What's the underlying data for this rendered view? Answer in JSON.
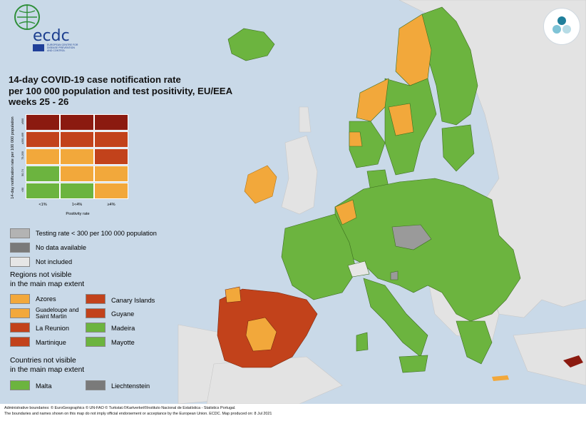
{
  "logo": {
    "text": "ecdc",
    "subtitle": "EUROPEAN CENTRE FOR DISEASE PREVENTION AND CONTROL"
  },
  "title": {
    "lines": [
      "14-day COVID-19 case notification rate",
      "per 100 000 population and test positivity, EU/EEA",
      "weeks 25 - 26"
    ]
  },
  "matrix": {
    "y_axis_label": "14-day notification rate per 100 000 population",
    "x_axis_label": "Positivity rate",
    "x_ticks": [
      "<1%",
      "1<4%",
      "≥4%"
    ],
    "y_ticks": [
      "≥500",
      "≥200-499",
      "75-200",
      "50-74",
      "<50"
    ],
    "rows_top_to_bottom": [
      [
        "#8b1a10",
        "#8b1a10",
        "#8b1a10"
      ],
      [
        "#c2421b",
        "#c2421b",
        "#c2421b"
      ],
      [
        "#f2a83b",
        "#f2a83b",
        "#c2421b"
      ],
      [
        "#6cb43f",
        "#f2a83b",
        "#f2a83b"
      ],
      [
        "#6cb43f",
        "#6cb43f",
        "#f2a83b"
      ]
    ]
  },
  "legend": {
    "testing_rate": {
      "label": "Testing rate < 300 per 100 000 population",
      "color": "#b3b3b3"
    },
    "no_data": {
      "label": "No data available",
      "color": "#7a7a7a"
    },
    "not_included": {
      "label": "Not included",
      "color": "#e6e6e6"
    }
  },
  "regions_heading": [
    "Regions not visible",
    "in the main map extent"
  ],
  "regions": [
    {
      "label": "Azores",
      "color": "#f2a83b"
    },
    {
      "label": "Guadeloupe and Saint Martin",
      "color": "#f2a83b"
    },
    {
      "label": "La Reunion",
      "color": "#c2421b"
    },
    {
      "label": "Martinique",
      "color": "#c2421b"
    },
    {
      "label": "Canary Islands",
      "color": "#c2421b"
    },
    {
      "label": "Guyane",
      "color": "#c2421b"
    },
    {
      "label": "Madeira",
      "color": "#6cb43f"
    },
    {
      "label": "Mayotte",
      "color": "#6cb43f"
    }
  ],
  "countries_heading": [
    "Countries not visible",
    "in the main map extent"
  ],
  "countries": [
    {
      "label": "Malta",
      "color": "#6cb43f"
    },
    {
      "label": "Liechtenstein",
      "color": "#7a7a7a"
    }
  ],
  "footer": {
    "line1": "Administrative boundaries: © EuroGeographics © UN-FAO © Turkstat.©Kartverket©Instituto Nacional de Estatística - Statistics Portugal.",
    "line2": "The boundaries and names shown on this map do not imply official endorsement or acceptance by the European Union. ECDC. Map produced on: 8 Jul 2021"
  },
  "colors": {
    "sea": "#c9d9e8",
    "non_eu_land": "#e3e3e3",
    "green": "#6cb43f",
    "orange": "#f2a83b",
    "red": "#c2421b",
    "dark_red": "#8b1a10",
    "grey_no_data": "#9a9a9a",
    "border": "#3c6e1f"
  }
}
